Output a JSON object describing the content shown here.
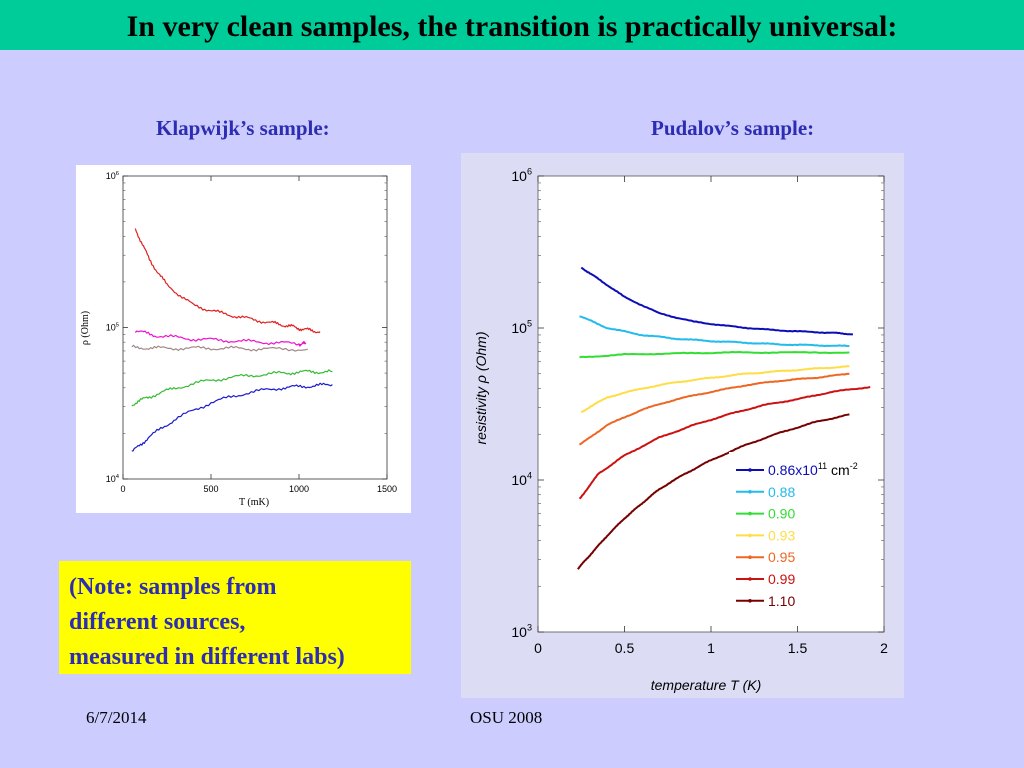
{
  "slide": {
    "title": "In very clean samples, the transition is practically universal:",
    "left_label": "Klapwijk’s sample:",
    "right_label": "Pudalov’s sample:",
    "note_lines": [
      "(Note: samples from",
      "different sources,",
      "measured in different labs)"
    ],
    "footer_date": "6/7/2014",
    "footer_center": "OSU 2008",
    "colors": {
      "title_bar": "#00cc99",
      "background": "#ccccff",
      "note": "#ffff00",
      "label_text": "#2d2db3"
    }
  },
  "chart_data": [
    {
      "type": "line",
      "title": "",
      "xlabel": "T (mK)",
      "ylabel": "ρ (Ohm)",
      "xlim": [
        0,
        1500
      ],
      "ylim": [
        10000,
        1000000
      ],
      "y_scale": "log",
      "x_ticks": [
        "0",
        "500",
        "1000",
        "1500"
      ],
      "y_ticks": [
        {
          "value": 10000,
          "mantissa": "10",
          "exp": "4"
        },
        {
          "value": 100000,
          "mantissa": "10",
          "exp": "5"
        },
        {
          "value": 1000000,
          "mantissa": "10",
          "exp": "6"
        }
      ],
      "legend": "none",
      "series": [
        {
          "color": "#e02020",
          "points": [
            [
              70,
              450000
            ],
            [
              150,
              280000
            ],
            [
              250,
              190000
            ],
            [
              400,
              140000
            ],
            [
              550,
              125000
            ],
            [
              700,
              115000
            ],
            [
              850,
              107000
            ],
            [
              950,
              102000
            ],
            [
              1030,
              97000
            ],
            [
              1120,
              94000
            ]
          ]
        },
        {
          "color": "#ee10cc",
          "points": [
            [
              70,
              95000
            ],
            [
              200,
              88000
            ],
            [
              400,
              84000
            ],
            [
              600,
              82000
            ],
            [
              800,
              80000
            ],
            [
              1000,
              78000
            ],
            [
              1040,
              78000
            ]
          ]
        },
        {
          "color": "#a08888",
          "points": [
            [
              50,
              74000
            ],
            [
              200,
              73000
            ],
            [
              400,
              73000
            ],
            [
              600,
              73000
            ],
            [
              800,
              72000
            ],
            [
              1050,
              72000
            ]
          ]
        },
        {
          "color": "#33bb33",
          "points": [
            [
              50,
              31000
            ],
            [
              150,
              35000
            ],
            [
              300,
              40000
            ],
            [
              500,
              45000
            ],
            [
              700,
              48000
            ],
            [
              900,
              50000
            ],
            [
              1050,
              51000
            ],
            [
              1190,
              51000
            ]
          ]
        },
        {
          "color": "#1a1acc",
          "points": [
            [
              50,
              15000
            ],
            [
              150,
              19000
            ],
            [
              300,
              25000
            ],
            [
              500,
              32000
            ],
            [
              700,
              37000
            ],
            [
              900,
              40000
            ],
            [
              1050,
              41000
            ],
            [
              1190,
              42000
            ]
          ]
        }
      ]
    },
    {
      "type": "line",
      "title": "",
      "xlabel": "temperature T  (K)",
      "ylabel": "resistivity ρ  (Ohm)",
      "xlim": [
        0,
        2
      ],
      "ylim": [
        1000,
        1000000
      ],
      "y_scale": "log",
      "x_ticks": [
        "0",
        "0.5",
        "1",
        "1.5",
        "2"
      ],
      "y_ticks": [
        {
          "value": 1000,
          "mantissa": "10",
          "exp": "3"
        },
        {
          "value": 10000,
          "mantissa": "10",
          "exp": "4"
        },
        {
          "value": 100000,
          "mantissa": "10",
          "exp": "5"
        },
        {
          "value": 1000000,
          "mantissa": "10",
          "exp": "6"
        }
      ],
      "legend": "bottom-right",
      "series": [
        {
          "name": "0.86x10",
          "name_exp": "11",
          "name_unit": "cm",
          "name_unit_exp": "-2",
          "color": "#0d0db8",
          "points": [
            [
              0.25,
              250000
            ],
            [
              0.35,
              210000
            ],
            [
              0.5,
              160000
            ],
            [
              0.7,
              125000
            ],
            [
              0.9,
              110000
            ],
            [
              1.1,
              103000
            ],
            [
              1.3,
              98000
            ],
            [
              1.5,
              95000
            ],
            [
              1.7,
              93000
            ],
            [
              1.82,
              91000
            ]
          ]
        },
        {
          "name": "0.88",
          "color": "#22bbee",
          "points": [
            [
              0.24,
              120000
            ],
            [
              0.4,
              100000
            ],
            [
              0.6,
              90000
            ],
            [
              0.8,
              85000
            ],
            [
              1.0,
              82000
            ],
            [
              1.2,
              80000
            ],
            [
              1.4,
              78000
            ],
            [
              1.6,
              77000
            ],
            [
              1.8,
              76000
            ]
          ]
        },
        {
          "name": "0.90",
          "color": "#33dd33",
          "points": [
            [
              0.24,
              64000
            ],
            [
              0.5,
              67000
            ],
            [
              0.8,
              68000
            ],
            [
              1.1,
              69000
            ],
            [
              1.4,
              69000
            ],
            [
              1.8,
              69000
            ]
          ]
        },
        {
          "name": "0.93",
          "color": "#ffdd44",
          "points": [
            [
              0.25,
              28000
            ],
            [
              0.4,
              35000
            ],
            [
              0.6,
              40000
            ],
            [
              0.8,
              44000
            ],
            [
              1.0,
              47000
            ],
            [
              1.2,
              50000
            ],
            [
              1.4,
              52000
            ],
            [
              1.6,
              54000
            ],
            [
              1.8,
              56000
            ]
          ]
        },
        {
          "name": "0.95",
          "color": "#ee6622",
          "points": [
            [
              0.24,
              17000
            ],
            [
              0.4,
              23000
            ],
            [
              0.6,
              29000
            ],
            [
              0.8,
              34000
            ],
            [
              1.0,
              38000
            ],
            [
              1.2,
              42000
            ],
            [
              1.4,
              45000
            ],
            [
              1.6,
              47000
            ],
            [
              1.8,
              50000
            ]
          ]
        },
        {
          "name": "0.99",
          "color": "#cc1111",
          "points": [
            [
              0.24,
              7500
            ],
            [
              0.35,
              11000
            ],
            [
              0.5,
              14500
            ],
            [
              0.7,
              19000
            ],
            [
              0.9,
              23000
            ],
            [
              1.1,
              27000
            ],
            [
              1.3,
              31000
            ],
            [
              1.5,
              34000
            ],
            [
              1.7,
              38000
            ],
            [
              1.92,
              41000
            ]
          ]
        },
        {
          "name": "1.10",
          "color": "#770000",
          "points": [
            [
              0.23,
              2600
            ],
            [
              0.3,
              3200
            ],
            [
              0.4,
              4300
            ],
            [
              0.5,
              5600
            ],
            [
              0.6,
              7000
            ],
            [
              0.7,
              8700
            ],
            [
              0.85,
              11000
            ],
            [
              1.0,
              13500
            ],
            [
              1.2,
              17000
            ],
            [
              1.4,
              20500
            ],
            [
              1.6,
              24000
            ],
            [
              1.8,
              27000
            ]
          ]
        }
      ]
    }
  ]
}
